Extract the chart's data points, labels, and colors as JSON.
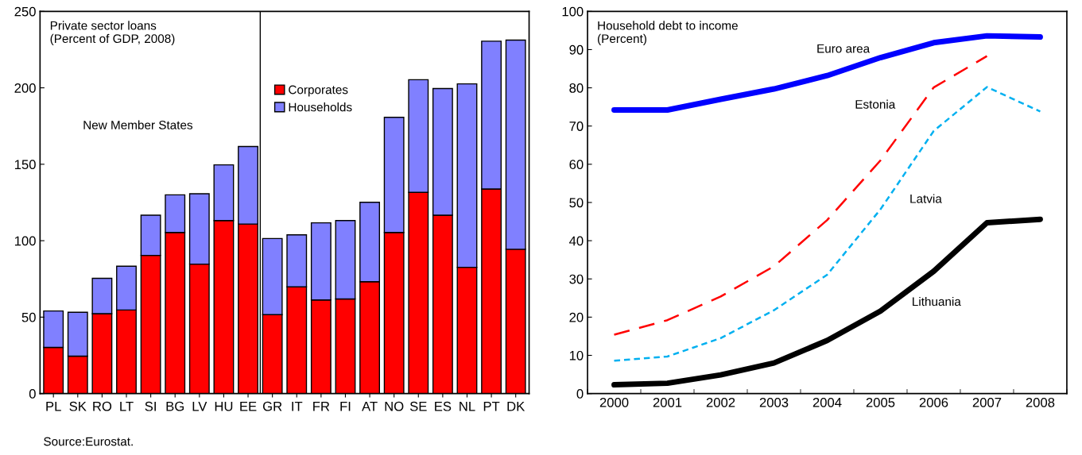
{
  "chart_data": [
    {
      "type": "bar",
      "title": "Private sector loans\n(Percent of GDP, 2008)",
      "stacked": true,
      "legend": "top",
      "categories": [
        "PL",
        "SK",
        "RO",
        "LT",
        "SI",
        "BG",
        "LV",
        "HU",
        "EE",
        "GR",
        "IT",
        "FR",
        "FI",
        "AT",
        "NO",
        "SE",
        "ES",
        "NL",
        "PT",
        "DK"
      ],
      "series": [
        {
          "name": "Corporates",
          "color": "#ff0000",
          "values": [
            30.2,
            24.5,
            52.3,
            54.7,
            90.4,
            105.4,
            84.7,
            113.2,
            110.9,
            51.6,
            69.8,
            61.2,
            61.9,
            73.2,
            105.4,
            131.6,
            116.7,
            82.6,
            133.8,
            94.4
          ]
        },
        {
          "name": "Households",
          "color": "#8080ff",
          "values": [
            23.8,
            28.7,
            23.1,
            28.6,
            26.3,
            24.6,
            46.0,
            36.4,
            50.7,
            49.8,
            34.0,
            50.5,
            51.3,
            51.9,
            75.3,
            73.7,
            82.8,
            120.0,
            96.7,
            136.8
          ]
        }
      ],
      "ylim": [
        0,
        250
      ],
      "yticks": [
        0,
        50,
        100,
        150,
        200,
        250
      ],
      "grid": false,
      "annotations": [
        "New Member States",
        "Source:Eurostat."
      ]
    },
    {
      "type": "line",
      "title": "Household debt to income\n(Percent)",
      "legend": false,
      "categories": [
        "2000",
        "2001",
        "2002",
        "2003",
        "2004",
        "2005",
        "2006",
        "2007",
        "2008"
      ],
      "series": [
        {
          "name": "Euro area",
          "color": "#0000ff",
          "line_style": "solid",
          "values": [
            74.2,
            74.2,
            77.0,
            79.7,
            83.2,
            87.9,
            91.8,
            93.6,
            93.3
          ]
        },
        {
          "name": "Estonia",
          "color": "#ff0000",
          "line_style": "dashed",
          "values": [
            15.4,
            19.2,
            25.4,
            33.3,
            45.4,
            61.0,
            80.1,
            88.3,
            null
          ]
        },
        {
          "name": "Latvia",
          "color": "#00b0f0",
          "line_style": "dotted",
          "values": [
            8.6,
            9.7,
            14.5,
            21.8,
            31.1,
            48.2,
            68.7,
            80.2,
            73.8
          ]
        },
        {
          "name": "Lithuania",
          "color": "#000000",
          "line_style": "solid",
          "values": [
            2.3,
            2.7,
            4.9,
            8.0,
            13.9,
            21.6,
            32.0,
            44.7,
            45.6
          ]
        }
      ],
      "ylim": [
        0,
        100
      ],
      "yticks": [
        0,
        10,
        20,
        30,
        40,
        50,
        60,
        70,
        80,
        90,
        100
      ],
      "grid": false,
      "marker": "none"
    }
  ]
}
